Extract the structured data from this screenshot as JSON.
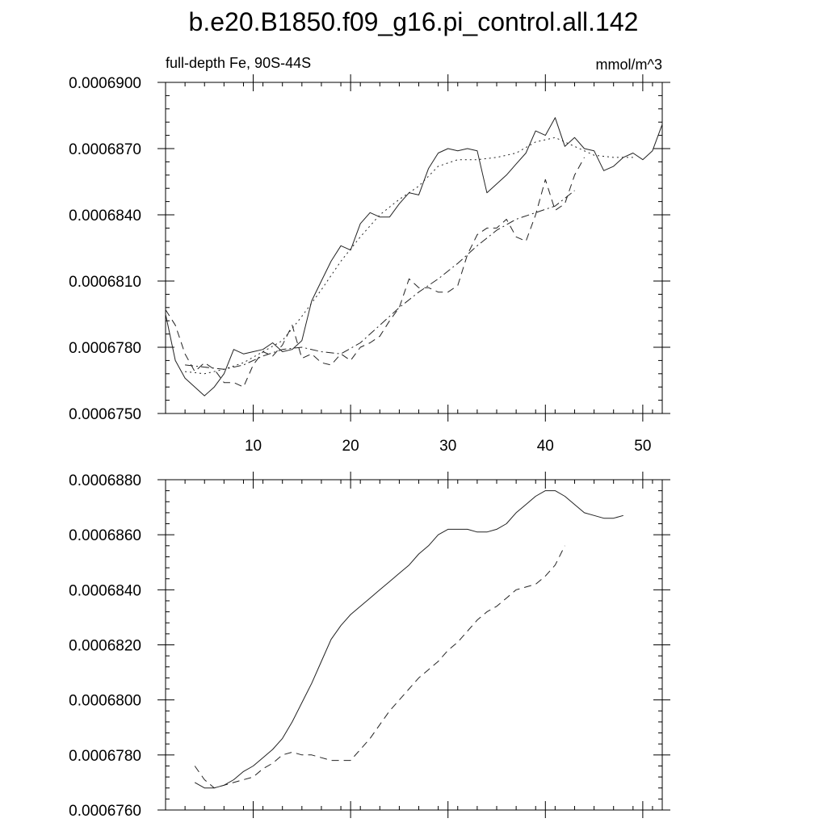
{
  "page": {
    "title": "b.e20.B1850.f09_g16.pi_control.all.142",
    "left_label": "full-depth Fe, 90S-44S",
    "right_label": "mmol/m^3"
  },
  "chart_data": [
    {
      "type": "line",
      "xlim": [
        1,
        52
      ],
      "ylim": [
        0.000675,
        0.00069
      ],
      "x_ticks": [
        10,
        20,
        30,
        40,
        50
      ],
      "x_tick_labels": [
        "10",
        "20",
        "30",
        "40",
        "50"
      ],
      "y_ticks": [
        0.000675,
        0.000678,
        0.000681,
        0.000684,
        0.000687,
        0.00069
      ],
      "y_tick_labels": [
        "0.0006750",
        "0.0006780",
        "0.0006810",
        "0.0006840",
        "0.0006870",
        "0.0006900"
      ],
      "grid": false,
      "series": [
        {
          "style": "solid",
          "x": [
            1,
            2,
            3,
            4,
            5,
            6,
            7,
            8,
            9,
            10,
            11,
            12,
            13,
            14,
            15,
            16,
            17,
            18,
            19,
            20,
            21,
            22,
            23,
            24,
            25,
            26,
            27,
            28,
            29,
            30,
            31,
            32,
            33,
            34,
            35,
            36,
            37,
            38,
            39,
            40,
            41,
            42,
            43,
            44,
            45,
            46,
            47,
            48,
            49,
            50,
            51,
            52
          ],
          "values": [
            0.0006795,
            0.0006774,
            0.0006766,
            0.0006762,
            0.0006758,
            0.0006762,
            0.0006768,
            0.0006779,
            0.0006777,
            0.0006778,
            0.0006779,
            0.0006782,
            0.0006778,
            0.0006779,
            0.0006783,
            0.0006801,
            0.000681,
            0.0006819,
            0.0006826,
            0.0006824,
            0.0006836,
            0.0006841,
            0.0006839,
            0.0006839,
            0.0006845,
            0.000685,
            0.0006849,
            0.0006861,
            0.0006868,
            0.000687,
            0.0006869,
            0.000687,
            0.0006869,
            0.000685,
            0.0006854,
            0.0006858,
            0.0006863,
            0.0006868,
            0.0006878,
            0.0006876,
            0.0006884,
            0.0006871,
            0.0006875,
            0.000687,
            0.0006869,
            0.000686,
            0.0006862,
            0.0006866,
            0.0006868,
            0.0006865,
            0.0006869,
            0.0006881
          ]
        },
        {
          "style": "dotted",
          "x": [
            3,
            5,
            7,
            9,
            11,
            13,
            15,
            17,
            19,
            21,
            23,
            25,
            27,
            29,
            31,
            33,
            35,
            37,
            39,
            41,
            43,
            45,
            47,
            49
          ],
          "values": [
            0.0006769,
            0.0006768,
            0.000677,
            0.0006773,
            0.0006778,
            0.0006783,
            0.0006794,
            0.0006806,
            0.0006819,
            0.000683,
            0.000684,
            0.0006847,
            0.0006853,
            0.0006862,
            0.0006865,
            0.0006865,
            0.0006866,
            0.0006868,
            0.0006873,
            0.0006875,
            0.0006871,
            0.0006867,
            0.0006866,
            0.0006866
          ]
        },
        {
          "style": "dashed",
          "x": [
            1,
            2,
            3,
            4,
            5,
            6,
            7,
            8,
            9,
            10,
            11,
            12,
            13,
            14,
            15,
            16,
            17,
            18,
            19,
            20,
            21,
            22,
            23,
            24,
            25,
            26,
            27,
            28,
            29,
            30,
            31,
            32,
            33,
            34,
            35,
            36,
            37,
            38,
            39,
            40,
            41,
            42,
            43,
            44
          ],
          "values": [
            0.0006797,
            0.000679,
            0.0006777,
            0.0006769,
            0.0006773,
            0.000677,
            0.0006764,
            0.0006764,
            0.0006762,
            0.0006772,
            0.0006778,
            0.0006776,
            0.0006781,
            0.000679,
            0.0006775,
            0.0006777,
            0.0006773,
            0.0006772,
            0.0006777,
            0.0006774,
            0.000678,
            0.0006782,
            0.0006785,
            0.0006792,
            0.0006798,
            0.0006811,
            0.0006807,
            0.0006807,
            0.0006805,
            0.0006805,
            0.0006808,
            0.0006822,
            0.0006831,
            0.0006834,
            0.0006834,
            0.0006838,
            0.000683,
            0.0006828,
            0.000684,
            0.0006856,
            0.0006842,
            0.0006845,
            0.0006858,
            0.0006866
          ]
        },
        {
          "style": "dashdot",
          "x": [
            3,
            5,
            7,
            9,
            11,
            13,
            15,
            17,
            19,
            21,
            23,
            25,
            27,
            29,
            31,
            33,
            35,
            37,
            39,
            41,
            43
          ],
          "values": [
            0.0006772,
            0.0006771,
            0.000677,
            0.0006772,
            0.0006776,
            0.0006779,
            0.000678,
            0.0006778,
            0.0006777,
            0.0006782,
            0.000679,
            0.0006798,
            0.0006805,
            0.0006811,
            0.0006818,
            0.0006826,
            0.0006833,
            0.0006838,
            0.0006841,
            0.0006844,
            0.0006851
          ]
        }
      ]
    },
    {
      "type": "line",
      "xlim": [
        1,
        52
      ],
      "ylim": [
        0.000676,
        0.000688
      ],
      "x_ticks": [
        10,
        20,
        30,
        40,
        50
      ],
      "x_tick_labels": [],
      "y_ticks": [
        0.000676,
        0.000678,
        0.00068,
        0.000682,
        0.000684,
        0.000686,
        0.000688
      ],
      "y_tick_labels": [
        "0.0006760",
        "0.0006780",
        "0.0006800",
        "0.0006820",
        "0.0006840",
        "0.0006860",
        "0.0006880"
      ],
      "grid": false,
      "series": [
        {
          "style": "solid",
          "x": [
            4,
            5,
            6,
            7,
            8,
            9,
            10,
            11,
            12,
            13,
            14,
            15,
            16,
            17,
            18,
            19,
            20,
            21,
            22,
            23,
            24,
            25,
            26,
            27,
            28,
            29,
            30,
            31,
            32,
            33,
            34,
            35,
            36,
            37,
            38,
            39,
            40,
            41,
            42,
            43,
            44,
            45,
            46,
            47,
            48
          ],
          "values": [
            0.000677,
            0.0006768,
            0.0006768,
            0.0006769,
            0.0006771,
            0.0006774,
            0.0006776,
            0.0006779,
            0.0006782,
            0.0006786,
            0.0006792,
            0.0006799,
            0.0006806,
            0.0006814,
            0.0006822,
            0.0006827,
            0.0006831,
            0.0006834,
            0.0006837,
            0.000684,
            0.0006843,
            0.0006846,
            0.0006849,
            0.0006853,
            0.0006856,
            0.000686,
            0.0006862,
            0.0006862,
            0.0006862,
            0.0006861,
            0.0006861,
            0.0006862,
            0.0006864,
            0.0006868,
            0.0006871,
            0.0006874,
            0.0006876,
            0.0006876,
            0.0006874,
            0.0006871,
            0.0006868,
            0.0006867,
            0.0006866,
            0.0006866,
            0.0006867
          ]
        },
        {
          "style": "dashed",
          "x": [
            4,
            5,
            6,
            7,
            8,
            9,
            10,
            11,
            12,
            13,
            14,
            15,
            16,
            17,
            18,
            19,
            20,
            21,
            22,
            23,
            24,
            25,
            26,
            27,
            28,
            29,
            30,
            31,
            32,
            33,
            34,
            35,
            36,
            37,
            38,
            39,
            40,
            41,
            42
          ],
          "values": [
            0.0006776,
            0.0006771,
            0.0006768,
            0.0006769,
            0.000677,
            0.0006771,
            0.0006772,
            0.0006775,
            0.0006777,
            0.000678,
            0.0006781,
            0.000678,
            0.000678,
            0.0006779,
            0.0006778,
            0.0006778,
            0.0006778,
            0.0006782,
            0.0006786,
            0.0006791,
            0.0006796,
            0.00068,
            0.0006804,
            0.0006808,
            0.0006811,
            0.0006814,
            0.0006818,
            0.0006821,
            0.0006825,
            0.0006829,
            0.0006832,
            0.0006834,
            0.0006837,
            0.000684,
            0.0006841,
            0.0006842,
            0.0006845,
            0.0006849,
            0.0006856
          ]
        }
      ]
    }
  ]
}
